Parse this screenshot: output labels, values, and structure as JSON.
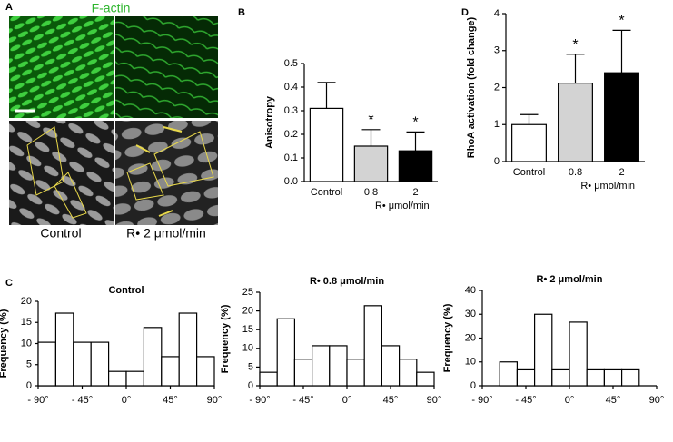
{
  "panel_a": {
    "label": "A",
    "title": "F-actin",
    "captions": [
      "Control",
      "R• 2 μmol/min"
    ]
  },
  "chart_data": [
    {
      "type": "bar",
      "panel_label": "B",
      "ylabel": "Anisotropy",
      "xlabel": "R• μmol/min",
      "categories": [
        "Control",
        "0.8",
        "2"
      ],
      "values": [
        0.31,
        0.15,
        0.13
      ],
      "errors": [
        0.11,
        0.07,
        0.08
      ],
      "colors": [
        "#ffffff",
        "#d3d3d3",
        "#000000"
      ],
      "significance": [
        null,
        "*",
        "*"
      ],
      "ylim": [
        0,
        0.5
      ],
      "yticks": [
        {
          "value": 0,
          "label": "0.0"
        },
        0.1,
        0.2,
        0.3,
        0.4,
        0.5
      ]
    },
    {
      "type": "bar",
      "panel_label": "D",
      "ylabel": "RhoA activation (fold change)",
      "xlabel": "R• μmol/min",
      "categories": [
        "Control",
        "0.8",
        "2"
      ],
      "values": [
        1.0,
        2.12,
        2.4
      ],
      "errors": [
        0.27,
        0.78,
        1.15
      ],
      "colors": [
        "#ffffff",
        "#d3d3d3",
        "#000000"
      ],
      "significance": [
        null,
        "*",
        "*"
      ],
      "ylim": [
        0,
        4
      ],
      "yticks": [
        0,
        1,
        2,
        3,
        4
      ]
    },
    {
      "type": "histogram",
      "panel_label": "C",
      "title": "Control",
      "ylabel": "Frequency (%)",
      "color": "#ffffff",
      "bins": [
        -90,
        -72,
        -54,
        -36,
        -18,
        0,
        18,
        36,
        54,
        72,
        90
      ],
      "values": [
        10.3,
        17.2,
        10.3,
        10.3,
        3.4,
        3.4,
        13.8,
        6.9,
        17.2,
        6.9
      ],
      "xlim": [
        -90,
        90
      ],
      "xticks": [
        {
          "value": -90,
          "label": "- 90°"
        },
        {
          "value": -45,
          "label": "- 45°"
        },
        {
          "value": 0,
          "label": "0°"
        },
        {
          "value": 45,
          "label": "45°"
        },
        {
          "value": 90,
          "label": "90°"
        }
      ],
      "ylim": [
        0,
        20
      ],
      "yticks": [
        0,
        5,
        10,
        15,
        20
      ]
    },
    {
      "type": "histogram",
      "title": "R• 0.8 μmol/min",
      "ylabel": "Frequency (%)",
      "color": "#ffffff",
      "bins": [
        -90,
        -72,
        -54,
        -36,
        -18,
        0,
        18,
        36,
        54,
        72,
        90
      ],
      "values": [
        3.6,
        17.9,
        7.1,
        10.7,
        10.7,
        7.1,
        21.4,
        10.7,
        7.1,
        3.6
      ],
      "xlim": [
        -90,
        90
      ],
      "xticks": [
        {
          "value": -90,
          "label": "- 90°"
        },
        {
          "value": -45,
          "label": "- 45°"
        },
        {
          "value": 0,
          "label": "0°"
        },
        {
          "value": 45,
          "label": "45°"
        },
        {
          "value": 90,
          "label": "90°"
        }
      ],
      "ylim": [
        0,
        25
      ],
      "yticks": [
        0,
        5,
        10,
        15,
        20,
        25
      ]
    },
    {
      "type": "histogram",
      "title": "R• 2 μmol/min",
      "ylabel": "Frequency (%)",
      "color": "#ffffff",
      "bins": [
        -90,
        -72,
        -54,
        -36,
        -18,
        0,
        18,
        36,
        54,
        72,
        90
      ],
      "values": [
        0,
        10,
        6.7,
        30,
        6.7,
        26.7,
        6.7,
        6.7,
        6.7,
        0
      ],
      "xlim": [
        -90,
        90
      ],
      "xticks": [
        {
          "value": -90,
          "label": "- 90°"
        },
        {
          "value": -45,
          "label": "- 45°"
        },
        {
          "value": 0,
          "label": "0°"
        },
        {
          "value": 45,
          "label": "45°"
        },
        {
          "value": 90,
          "label": "90°"
        }
      ],
      "ylim": [
        0,
        40
      ],
      "yticks": [
        0,
        10,
        20,
        30,
        40
      ]
    }
  ]
}
